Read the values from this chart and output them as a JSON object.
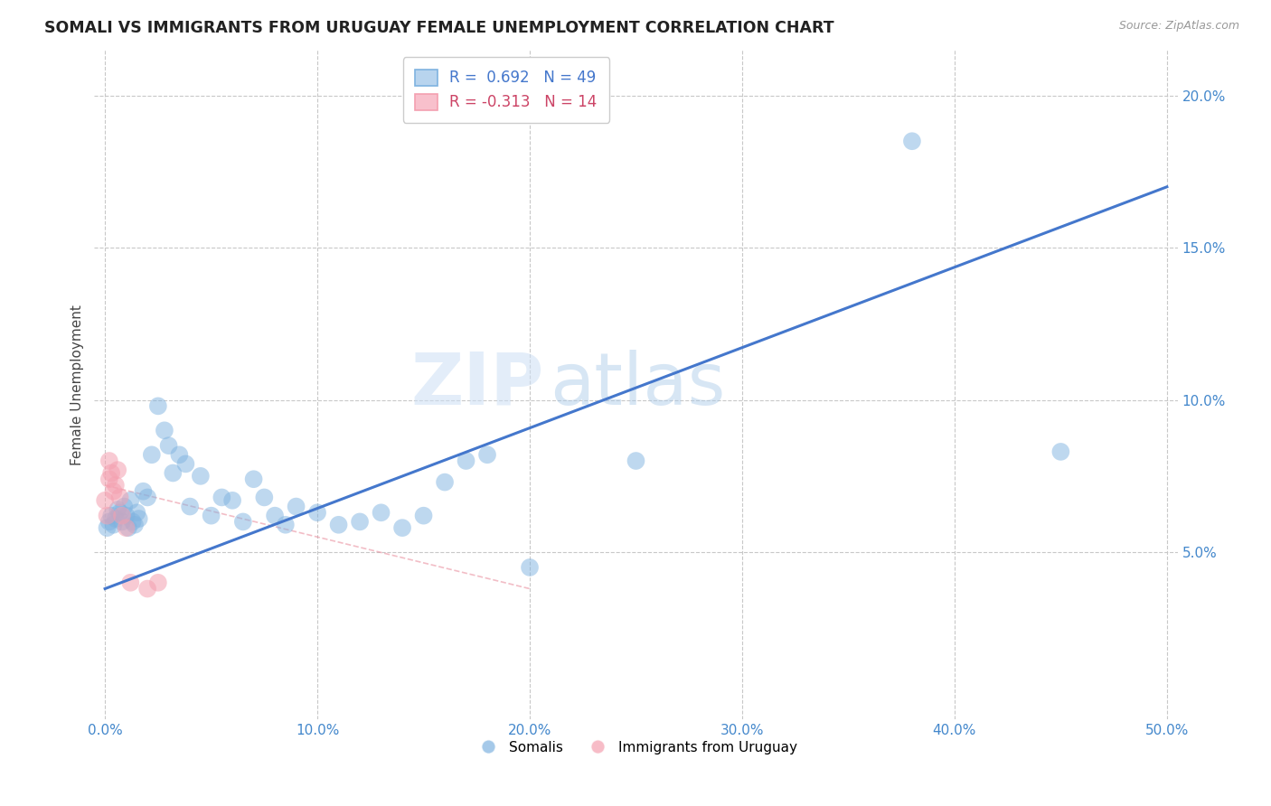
{
  "title": "SOMALI VS IMMIGRANTS FROM URUGUAY FEMALE UNEMPLOYMENT CORRELATION CHART",
  "source": "Source: ZipAtlas.com",
  "ylabel": "Female Unemployment",
  "xlim": [
    -0.005,
    0.505
  ],
  "ylim": [
    -0.005,
    0.215
  ],
  "xticks": [
    0.0,
    0.1,
    0.2,
    0.3,
    0.4,
    0.5
  ],
  "yticks": [
    0.05,
    0.1,
    0.15,
    0.2
  ],
  "xticklabels": [
    "0.0%",
    "10.0%",
    "20.0%",
    "30.0%",
    "40.0%",
    "50.0%"
  ],
  "yticklabels": [
    "5.0%",
    "10.0%",
    "15.0%",
    "20.0%"
  ],
  "background_color": "#ffffff",
  "watermark_zip": "ZIP",
  "watermark_atlas": "atlas",
  "legend_r1": "R =  0.692",
  "legend_n1": "N = 49",
  "legend_r2": "R = -0.313",
  "legend_n2": "N = 14",
  "somali_color": "#7fb3e0",
  "uruguay_color": "#f4a0b0",
  "somali_line_color": "#4477cc",
  "uruguay_line_color": "#e88898",
  "grid_color": "#c8c8c8",
  "somali_line_x0": 0.0,
  "somali_line_y0": 0.038,
  "somali_line_x1": 0.5,
  "somali_line_y1": 0.17,
  "uruguay_line_x0": 0.0,
  "uruguay_line_y0": 0.072,
  "uruguay_line_x1": 0.2,
  "uruguay_line_y1": 0.038,
  "somali_x": [
    0.001,
    0.002,
    0.003,
    0.004,
    0.005,
    0.006,
    0.007,
    0.008,
    0.009,
    0.01,
    0.011,
    0.012,
    0.013,
    0.014,
    0.015,
    0.016,
    0.018,
    0.02,
    0.022,
    0.025,
    0.028,
    0.03,
    0.032,
    0.035,
    0.038,
    0.04,
    0.045,
    0.05,
    0.055,
    0.06,
    0.065,
    0.07,
    0.075,
    0.08,
    0.085,
    0.09,
    0.1,
    0.11,
    0.12,
    0.13,
    0.14,
    0.15,
    0.16,
    0.17,
    0.18,
    0.2,
    0.25,
    0.38,
    0.45
  ],
  "somali_y": [
    0.058,
    0.06,
    0.062,
    0.059,
    0.061,
    0.064,
    0.063,
    0.06,
    0.065,
    0.062,
    0.058,
    0.067,
    0.06,
    0.059,
    0.063,
    0.061,
    0.07,
    0.068,
    0.082,
    0.098,
    0.09,
    0.085,
    0.076,
    0.082,
    0.079,
    0.065,
    0.075,
    0.062,
    0.068,
    0.067,
    0.06,
    0.074,
    0.068,
    0.062,
    0.059,
    0.065,
    0.063,
    0.059,
    0.06,
    0.063,
    0.058,
    0.062,
    0.073,
    0.08,
    0.082,
    0.045,
    0.08,
    0.185,
    0.083
  ],
  "uruguay_x": [
    0.0,
    0.001,
    0.002,
    0.002,
    0.003,
    0.004,
    0.005,
    0.006,
    0.007,
    0.008,
    0.01,
    0.012,
    0.02,
    0.025
  ],
  "uruguay_y": [
    0.067,
    0.062,
    0.08,
    0.074,
    0.076,
    0.07,
    0.072,
    0.077,
    0.068,
    0.062,
    0.058,
    0.04,
    0.038,
    0.04
  ]
}
